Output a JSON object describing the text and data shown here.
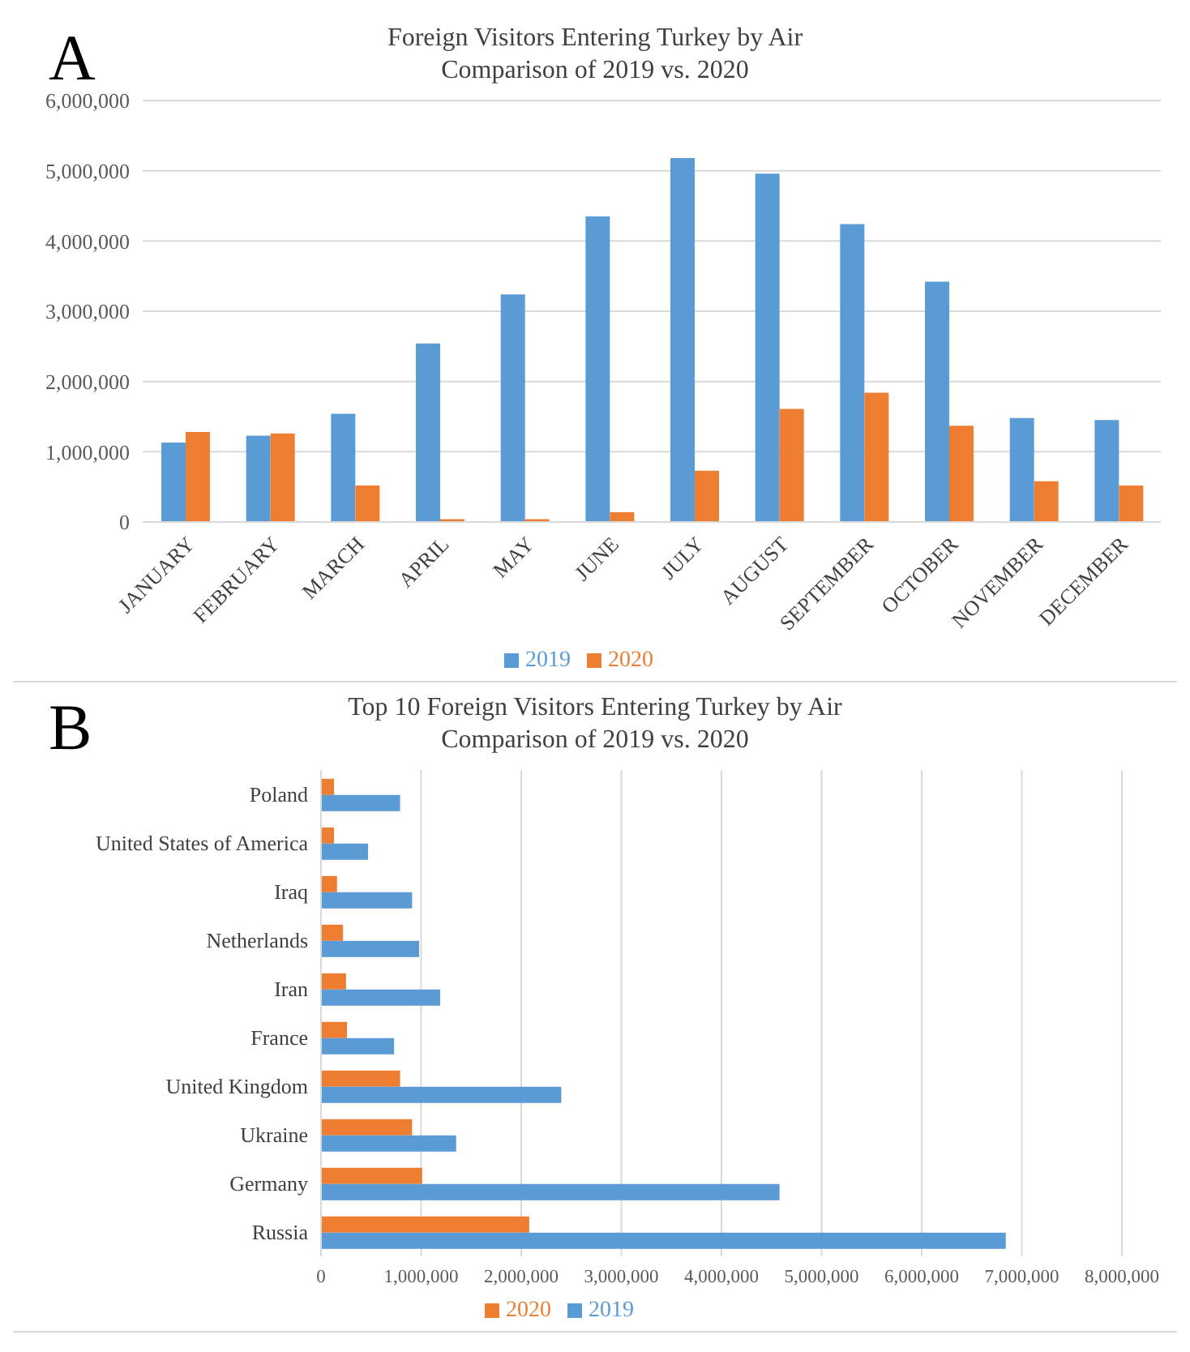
{
  "chart_data": [
    {
      "type": "bar",
      "title": "Foreign Visitors Entering Turkey by Air",
      "subtitle": "Comparison of 2019 vs. 2020",
      "annotations": [
        "A"
      ],
      "categories": [
        "JANUARY",
        "FEBRUARY",
        "MARCH",
        "APRIL",
        "MAY",
        "JUNE",
        "JULY",
        "AUGUST",
        "SEPTEMBER",
        "OCTOBER",
        "NOVEMBER",
        "DECEMBER"
      ],
      "series": [
        {
          "name": "2019",
          "color": "#5b9bd5",
          "values": [
            1130000,
            1230000,
            1540000,
            2540000,
            3240000,
            4350000,
            5180000,
            4960000,
            4240000,
            3420000,
            1480000,
            1450000
          ]
        },
        {
          "name": "2020",
          "color": "#ed7d31",
          "values": [
            1280000,
            1260000,
            520000,
            40000,
            40000,
            140000,
            730000,
            1610000,
            1840000,
            1370000,
            580000,
            520000
          ]
        }
      ],
      "ylim": [
        0,
        6000000
      ],
      "yticks": [
        0,
        {
          "value": 1000000,
          "label": "1,000,000"
        },
        {
          "value": 2000000,
          "label": "2,000,000"
        },
        {
          "value": 3000000,
          "label": "3,000,000"
        },
        {
          "value": 4000000,
          "label": "4,000,000"
        },
        {
          "value": 5000000,
          "label": "5,000,000"
        },
        {
          "value": 6000000,
          "label": "6,000,000"
        }
      ],
      "grid": "y",
      "legend": "bottom"
    },
    {
      "type": "bar",
      "orientation": "horizontal",
      "title": "Top 10 Foreign Visitors Entering Turkey by Air",
      "subtitle": "Comparison of 2019 vs. 2020",
      "annotations": [
        "B"
      ],
      "categories": [
        "Poland",
        "United States of America",
        "Iraq",
        "Netherlands",
        "Iran",
        "France",
        "United Kingdom",
        "Ukraine",
        "Germany",
        "Russia"
      ],
      "series": [
        {
          "name": "2020",
          "color": "#ed7d31",
          "values": [
            130000,
            130000,
            160000,
            220000,
            250000,
            260000,
            790000,
            910000,
            1010000,
            2080000
          ]
        },
        {
          "name": "2019",
          "color": "#5b9bd5",
          "values": [
            790000,
            470000,
            910000,
            980000,
            1190000,
            730000,
            2400000,
            1350000,
            4580000,
            6840000
          ]
        }
      ],
      "xlim": [
        0,
        8000000
      ],
      "xticks": [
        0,
        {
          "value": 1000000,
          "label": "1,000,000"
        },
        {
          "value": 2000000,
          "label": "2,000,000"
        },
        {
          "value": 3000000,
          "label": "3,000,000"
        },
        {
          "value": 4000000,
          "label": "4,000,000"
        },
        {
          "value": 5000000,
          "label": "5,000,000"
        },
        {
          "value": 6000000,
          "label": "6,000,000"
        },
        {
          "value": 7000000,
          "label": "7,000,000"
        },
        {
          "value": 8000000,
          "label": "8,000,000"
        }
      ],
      "grid": "x",
      "legend": "bottom"
    }
  ]
}
